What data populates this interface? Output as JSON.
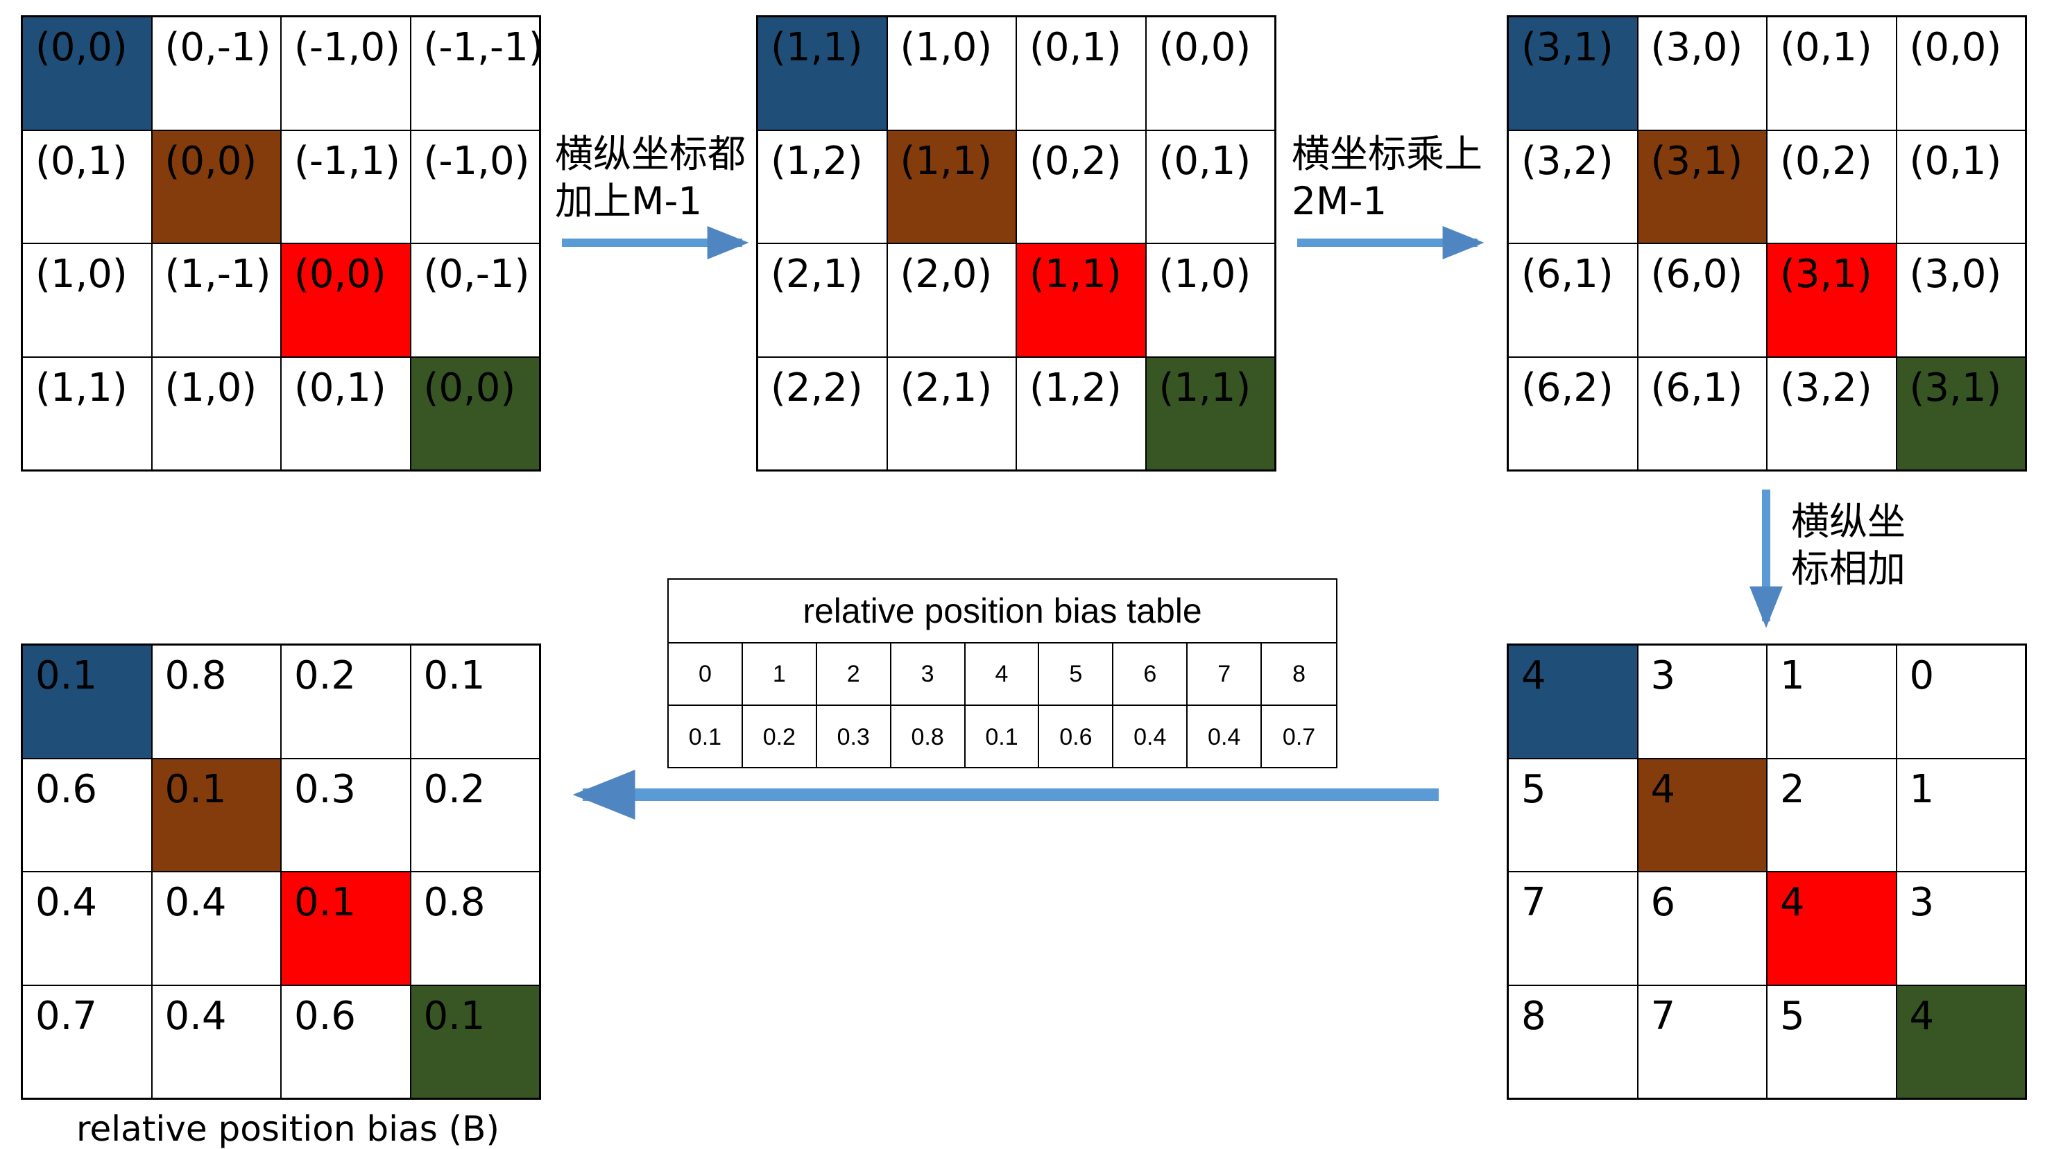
{
  "colors": {
    "blue": "#1f4e79",
    "brown": "#843c0c",
    "red": "#ff0000",
    "green": "#375623",
    "arrow": "#5b9bd5"
  },
  "diagonal_color_order": [
    "blue",
    "brown",
    "red",
    "green"
  ],
  "grids": {
    "relative_coords": [
      [
        "(0,0)",
        "(0,-1)",
        "(-1,0)",
        "(-1,-1)"
      ],
      [
        "(0,1)",
        "(0,0)",
        "(-1,1)",
        "(-1,0)"
      ],
      [
        "(1,0)",
        "(1,-1)",
        "(0,0)",
        "(0,-1)"
      ],
      [
        "(1,1)",
        "(1,0)",
        "(0,1)",
        "(0,0)"
      ]
    ],
    "shifted_coords": [
      [
        "(1,1)",
        "(1,0)",
        "(0,1)",
        "(0,0)"
      ],
      [
        "(1,2)",
        "(1,1)",
        "(0,2)",
        "(0,1)"
      ],
      [
        "(2,1)",
        "(2,0)",
        "(1,1)",
        "(1,0)"
      ],
      [
        "(2,2)",
        "(2,1)",
        "(1,2)",
        "(1,1)"
      ]
    ],
    "scaled_coords": [
      [
        "(3,1)",
        "(3,0)",
        "(0,1)",
        "(0,0)"
      ],
      [
        "(3,2)",
        "(3,1)",
        "(0,2)",
        "(0,1)"
      ],
      [
        "(6,1)",
        "(6,0)",
        "(3,1)",
        "(3,0)"
      ],
      [
        "(6,2)",
        "(6,1)",
        "(3,2)",
        "(3,1)"
      ]
    ],
    "index": [
      [
        "4",
        "3",
        "1",
        "0"
      ],
      [
        "5",
        "4",
        "2",
        "1"
      ],
      [
        "7",
        "6",
        "4",
        "3"
      ],
      [
        "8",
        "7",
        "5",
        "4"
      ]
    ],
    "bias": [
      [
        "0.1",
        "0.8",
        "0.2",
        "0.1"
      ],
      [
        "0.6",
        "0.1",
        "0.3",
        "0.2"
      ],
      [
        "0.4",
        "0.4",
        "0.1",
        "0.8"
      ],
      [
        "0.7",
        "0.4",
        "0.6",
        "0.1"
      ]
    ]
  },
  "labels": {
    "step1": [
      "横纵坐标都",
      "加上M-1"
    ],
    "step2": [
      "横坐标乘上",
      "2M-1"
    ],
    "step3": [
      "横纵坐",
      "标相加"
    ],
    "caption": "relative position bias (B)"
  },
  "bias_table": {
    "title": "relative position bias table",
    "indices": [
      "0",
      "1",
      "2",
      "3",
      "4",
      "5",
      "6",
      "7",
      "8"
    ],
    "values": [
      "0.1",
      "0.2",
      "0.3",
      "0.8",
      "0.1",
      "0.6",
      "0.4",
      "0.4",
      "0.7"
    ]
  }
}
